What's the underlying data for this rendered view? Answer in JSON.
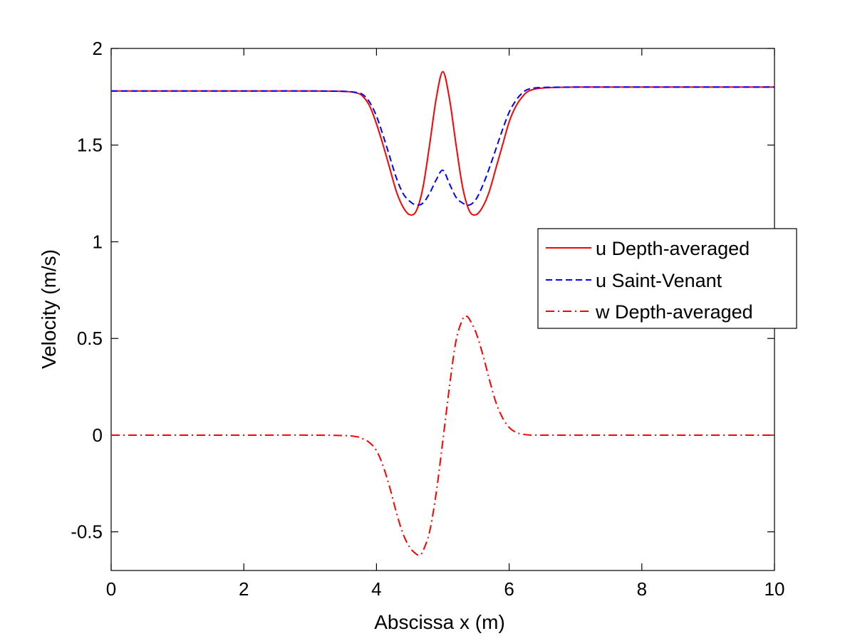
{
  "chart_data": {
    "type": "line",
    "title": "",
    "xlabel": "Abscissa x (m)",
    "ylabel": "Velocity (m/s)",
    "xlim": [
      0,
      10
    ],
    "ylim": [
      -0.7,
      2
    ],
    "xticks": [
      0,
      2,
      4,
      6,
      8,
      10
    ],
    "xtick_labels": [
      "0",
      "2",
      "4",
      "6",
      "8",
      "10"
    ],
    "yticks": [
      -0.5,
      0,
      0.5,
      1,
      1.5,
      2
    ],
    "ytick_labels": [
      "-0.5",
      "0",
      "0.5",
      "1",
      "1.5",
      "2"
    ],
    "grid": false,
    "legend_position": "middle-right",
    "series": [
      {
        "name": "u Depth-averaged",
        "color": "#ff0000",
        "style": "solid",
        "x": [
          0,
          1,
          2,
          3,
          3.5,
          3.7,
          3.8,
          3.9,
          4.0,
          4.1,
          4.2,
          4.3,
          4.4,
          4.5,
          4.6,
          4.7,
          4.8,
          4.9,
          5.0,
          5.1,
          5.2,
          5.3,
          5.4,
          5.5,
          5.6,
          5.7,
          5.8,
          5.9,
          6.0,
          6.1,
          6.2,
          6.3,
          6.5,
          7,
          8,
          9,
          10
        ],
        "y": [
          1.78,
          1.78,
          1.78,
          1.78,
          1.778,
          1.77,
          1.75,
          1.7,
          1.61,
          1.5,
          1.38,
          1.26,
          1.18,
          1.14,
          1.16,
          1.28,
          1.5,
          1.74,
          1.88,
          1.74,
          1.5,
          1.28,
          1.16,
          1.14,
          1.18,
          1.26,
          1.38,
          1.5,
          1.62,
          1.7,
          1.75,
          1.78,
          1.795,
          1.8,
          1.8,
          1.8,
          1.8
        ]
      },
      {
        "name": "u Saint-Venant",
        "color": "#0000ff",
        "style": "dashed",
        "x": [
          0,
          1,
          2,
          3,
          3.5,
          3.7,
          3.8,
          3.9,
          4.0,
          4.1,
          4.2,
          4.3,
          4.4,
          4.5,
          4.6,
          4.7,
          4.8,
          4.9,
          5.0,
          5.1,
          5.2,
          5.3,
          5.4,
          5.5,
          5.6,
          5.7,
          5.8,
          5.9,
          6.0,
          6.1,
          6.2,
          6.3,
          6.5,
          7,
          8,
          9,
          10
        ],
        "y": [
          1.78,
          1.78,
          1.78,
          1.78,
          1.778,
          1.772,
          1.76,
          1.72,
          1.65,
          1.55,
          1.44,
          1.33,
          1.25,
          1.21,
          1.19,
          1.2,
          1.25,
          1.32,
          1.37,
          1.3,
          1.23,
          1.2,
          1.19,
          1.22,
          1.29,
          1.38,
          1.48,
          1.58,
          1.67,
          1.73,
          1.77,
          1.79,
          1.798,
          1.8,
          1.8,
          1.8,
          1.8
        ]
      },
      {
        "name": "w Depth-averaged",
        "color": "#ff0000",
        "style": "dashdot",
        "x": [
          0,
          1,
          2,
          3,
          3.5,
          3.7,
          3.8,
          3.9,
          4.0,
          4.1,
          4.2,
          4.3,
          4.4,
          4.5,
          4.6,
          4.65,
          4.7,
          4.8,
          4.9,
          5.0,
          5.1,
          5.2,
          5.3,
          5.35,
          5.4,
          5.5,
          5.6,
          5.7,
          5.8,
          5.9,
          6.0,
          6.1,
          6.2,
          6.3,
          6.5,
          7,
          8,
          9,
          10
        ],
        "y": [
          0,
          0,
          0,
          0,
          -0.002,
          -0.008,
          -0.02,
          -0.04,
          -0.08,
          -0.16,
          -0.27,
          -0.4,
          -0.51,
          -0.58,
          -0.615,
          -0.62,
          -0.6,
          -0.5,
          -0.3,
          -0.03,
          0.25,
          0.49,
          0.6,
          0.615,
          0.6,
          0.53,
          0.42,
          0.29,
          0.17,
          0.09,
          0.04,
          0.015,
          0.005,
          0.001,
          0,
          0,
          0,
          0,
          0
        ]
      }
    ]
  }
}
